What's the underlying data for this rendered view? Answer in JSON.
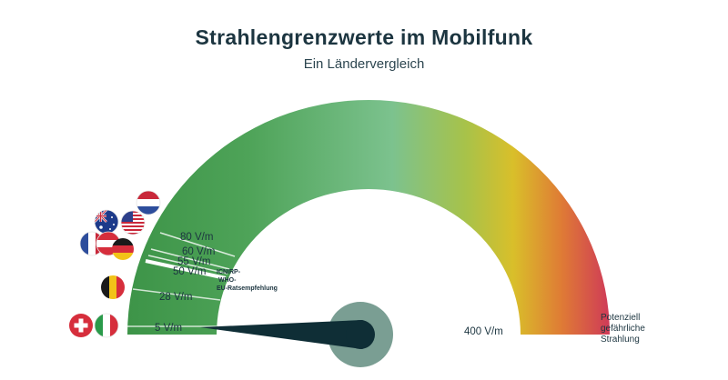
{
  "title": "Strahlengrenzwerte im Mobilfunk",
  "subtitle": "Ein Ländervergleich",
  "chart_data": {
    "type": "gauge",
    "unit": "V/m",
    "range": [
      0,
      400
    ],
    "markers": [
      {
        "label": "5 V/m",
        "value": 5,
        "countries": [
          "Schweiz",
          "Italien"
        ]
      },
      {
        "label": "28 V/m",
        "value": 28,
        "countries": [
          "Belgien"
        ]
      },
      {
        "label": "50 V/m",
        "value": 50,
        "countries": []
      },
      {
        "label": "55 V/m",
        "value": 55,
        "countries": [
          "Deutschland"
        ]
      },
      {
        "label": "60 V/m",
        "value": 60,
        "countries": [
          "Frankreich",
          "Österreich"
        ]
      },
      {
        "label": "80 V/m",
        "value": 80,
        "countries": [
          "Australien",
          "USA",
          "Niederlande"
        ]
      }
    ],
    "reference_note": [
      "ICNIRP-",
      "WHO-",
      "EU-Ratsempfehlung"
    ],
    "max_label": "400 V/m",
    "danger_note": [
      "Potenziell",
      "gefährliche",
      "Strahlung"
    ],
    "needle_value": 5,
    "colors": {
      "green": "#3d9448",
      "light_green": "#6dbf86",
      "yellow": "#d9bf2a",
      "orange": "#df7b35",
      "red": "#cf3a58",
      "needle": "#0f2e36",
      "hub": "#7a9e93"
    }
  }
}
